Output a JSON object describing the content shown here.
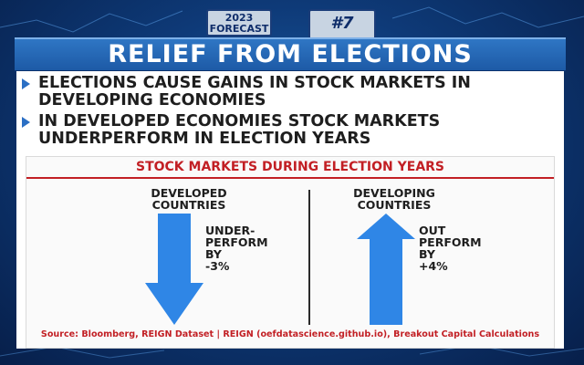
{
  "badge": {
    "year": "2023",
    "forecast": "FORECAST",
    "number": "#7"
  },
  "title": "RELIEF FROM ELECTIONS",
  "bullets": [
    {
      "line1": "ELECTIONS CAUSE GAINS IN STOCK MARKETS IN",
      "line2": "DEVELOPING ECONOMIES"
    },
    {
      "line1": "IN DEVELOPED ECONOMIES STOCK MARKETS",
      "line2": "UNDERPERFORM IN ELECTION YEARS"
    }
  ],
  "diagram": {
    "title": "STOCK MARKETS DURING ELECTION YEARS",
    "developed": {
      "heading_line1": "DEVELOPED",
      "heading_line2": "COUNTRIES",
      "label_lines": [
        "UNDER-",
        "PERFORM",
        "BY",
        "-3%"
      ],
      "direction": "down",
      "change_pct": -3
    },
    "developing": {
      "heading_line1": "DEVELOPING",
      "heading_line2": "COUNTRIES",
      "label_lines": [
        "OUT",
        "PERFORM",
        "BY",
        "+4%"
      ],
      "direction": "up",
      "change_pct": 4
    },
    "source": "Source: Bloomberg, REIGN Dataset | REIGN (oefdatascience.github.io), Breakout Capital Calculations"
  },
  "colors": {
    "arrow": "#2f86e6",
    "accent_red": "#c21f24",
    "title_bar": "#2466b5",
    "bullet_marker": "#2b6fc4"
  }
}
